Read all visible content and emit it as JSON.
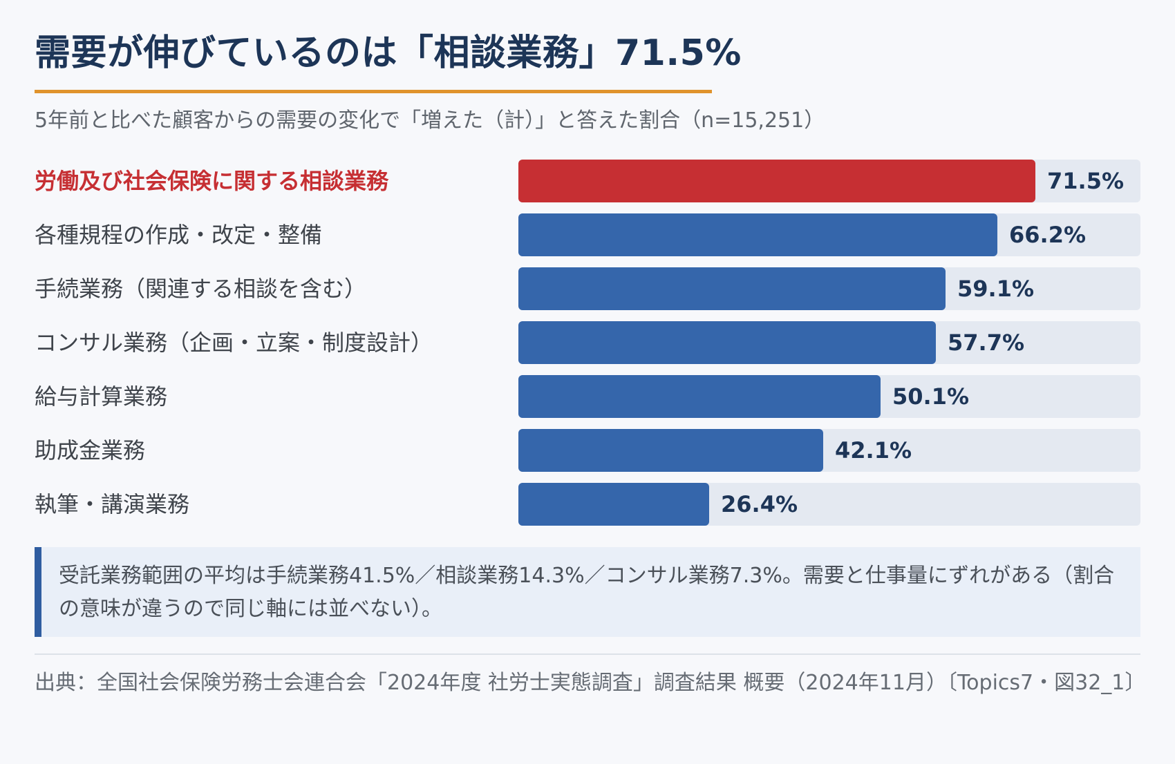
{
  "title": "需要が伸びているのは「相談業務」71.5%",
  "subtitle": "5年前と比べた顧客からの需要の変化で「増えた（計）」と答えた割合（n=15,251）",
  "colors": {
    "highlight": "#c62f33",
    "bar": "#3566ab",
    "track": "#e4e9f1",
    "accent_underline": "#e0932c",
    "title": "#1d3557"
  },
  "chart_data": {
    "type": "bar",
    "orientation": "horizontal",
    "title": "需要が伸びているのは「相談業務」71.5%",
    "subtitle": "5年前と比べた顧客からの需要の変化で「増えた（計）」と答えた割合（n=15,251）",
    "categories": [
      "労働及び社会保険に関する相談業務",
      "各種規程の作成・改定・整備",
      "手続業務（関連する相談を含む）",
      "コンサル業務（企画・立案・制度設計）",
      "給与計算業務",
      "助成金業務",
      "執筆・講演業務"
    ],
    "values": [
      71.5,
      66.2,
      59.1,
      57.7,
      50.1,
      42.1,
      26.4
    ],
    "value_labels": [
      "71.5%",
      "66.2%",
      "59.1%",
      "57.7%",
      "50.1%",
      "42.1%",
      "26.4%"
    ],
    "highlight_index": 0,
    "xlim": [
      0,
      86
    ],
    "xlabel": "",
    "ylabel": "",
    "grid": false,
    "legend": "none"
  },
  "note": "受託業務範囲の平均は手続業務41.5%／相談業務14.3%／コンサル業務7.3%。需要と仕事量にずれがある（割合の意味が違うので同じ軸には並べない）。",
  "source": "出典：全国社会保険労務士会連合会「2024年度 社労士実態調査」調査結果 概要（2024年11月）〔Topics7・図32_1〕"
}
